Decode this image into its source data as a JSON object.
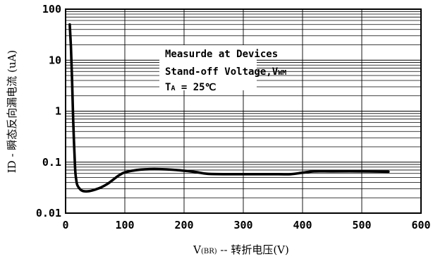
{
  "chart_data": {
    "type": "line",
    "xscale": "linear",
    "yscale": "log",
    "xlim": [
      0,
      600
    ],
    "ylim": [
      0.01,
      100
    ],
    "xticks": [
      "0",
      "100",
      "200",
      "300",
      "400",
      "500",
      "600"
    ],
    "yticks": [
      "0.01",
      "0.1",
      "1",
      "10",
      "100"
    ],
    "xlabel": {
      "prefix": "V",
      "sub": "(BR)",
      "suffix": " -- 转折电压(V)"
    },
    "ylabel": "ID - 瞬态反向漏电流 (uA)",
    "grid": true,
    "annotation": {
      "line1": "Measurde at Devices",
      "line2_prefix": "Stand-off Voltage,V",
      "line2_sub": "WM",
      "line3_prefix": "T",
      "line3_sub": "A",
      "line3_suffix": " = 25℃"
    },
    "series": [
      {
        "color": "#000000",
        "x": [
          7,
          9,
          11,
          13,
          16,
          18,
          20,
          25,
          30,
          40,
          50,
          60,
          70,
          80,
          90,
          100,
          120,
          150,
          180,
          200,
          220,
          240,
          280,
          320,
          360,
          380,
          400,
          420,
          450,
          500,
          545
        ],
        "y": [
          50,
          18,
          4,
          0.6,
          0.08,
          0.045,
          0.035,
          0.029,
          0.027,
          0.027,
          0.029,
          0.032,
          0.037,
          0.045,
          0.055,
          0.063,
          0.07,
          0.073,
          0.071,
          0.068,
          0.064,
          0.059,
          0.058,
          0.058,
          0.058,
          0.058,
          0.062,
          0.066,
          0.066,
          0.066,
          0.065
        ]
      }
    ]
  }
}
